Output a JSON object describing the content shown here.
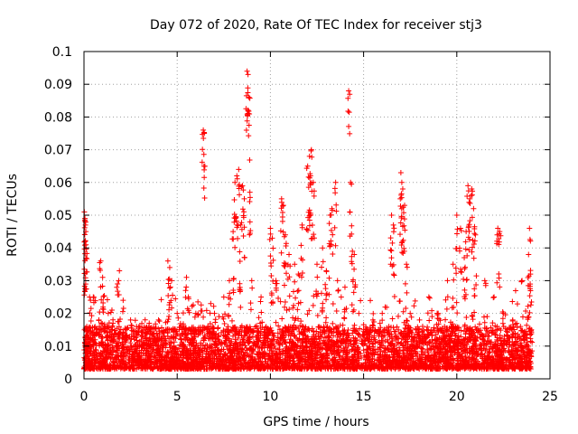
{
  "chart_data": {
    "type": "scatter",
    "title": "Day 072 of 2020, Rate Of TEC Index for receiver stj3",
    "xlabel": "GPS time / hours",
    "ylabel": "ROTI / TECUs",
    "xlim": [
      0,
      25
    ],
    "ylim": [
      0,
      0.1
    ],
    "x_ticks": [
      0,
      5,
      10,
      15,
      20,
      25
    ],
    "x_tick_labels": [
      "0",
      "5",
      "10",
      "15",
      "20",
      "25"
    ],
    "y_ticks": [
      0,
      0.01,
      0.02,
      0.03,
      0.04,
      0.05,
      0.06,
      0.07,
      0.08,
      0.09,
      0.1
    ],
    "y_tick_labels": [
      "0",
      "0.01",
      "0.02",
      "0.03",
      "0.04",
      "0.05",
      "0.06",
      "0.07",
      "0.08",
      "0.09",
      "0.1"
    ],
    "grid": true,
    "marker": "+",
    "color": "#ff0000",
    "series": [
      {
        "name": "ROTI",
        "color": "#ff0000",
        "points": [
          [
            0.02,
            0.051
          ],
          [
            0.05,
            0.049
          ],
          [
            0.08,
            0.047
          ],
          [
            0.1,
            0.045
          ],
          [
            0.06,
            0.042
          ],
          [
            0.15,
            0.016
          ],
          [
            0.3,
            0.025
          ],
          [
            0.35,
            0.024
          ],
          [
            0.5,
            0.025
          ],
          [
            0.8,
            0.018
          ],
          [
            0.9,
            0.036
          ],
          [
            1.0,
            0.031
          ],
          [
            1.3,
            0.02
          ],
          [
            1.5,
            0.021
          ],
          [
            1.8,
            0.029
          ],
          [
            1.9,
            0.033
          ],
          [
            2.1,
            0.024
          ],
          [
            2.5,
            0.018
          ],
          [
            3.0,
            0.016
          ],
          [
            3.5,
            0.017
          ],
          [
            4.0,
            0.018
          ],
          [
            4.5,
            0.036
          ],
          [
            4.6,
            0.034
          ],
          [
            4.7,
            0.03
          ],
          [
            5.0,
            0.02
          ],
          [
            5.5,
            0.031
          ],
          [
            5.6,
            0.025
          ],
          [
            6.0,
            0.02
          ],
          [
            6.4,
            0.076
          ],
          [
            6.45,
            0.075
          ],
          [
            6.8,
            0.023
          ],
          [
            7.0,
            0.02
          ],
          [
            7.5,
            0.025
          ],
          [
            7.8,
            0.03
          ],
          [
            8.0,
            0.045
          ],
          [
            8.1,
            0.06
          ],
          [
            8.2,
            0.062
          ],
          [
            8.3,
            0.064
          ],
          [
            8.4,
            0.047
          ],
          [
            8.5,
            0.059
          ],
          [
            8.6,
            0.055
          ],
          [
            8.75,
            0.094
          ],
          [
            8.8,
            0.093
          ],
          [
            8.85,
            0.086
          ],
          [
            8.9,
            0.057
          ],
          [
            9.0,
            0.03
          ],
          [
            9.5,
            0.025
          ],
          [
            10.0,
            0.046
          ],
          [
            10.1,
            0.043
          ],
          [
            10.3,
            0.03
          ],
          [
            10.6,
            0.055
          ],
          [
            10.7,
            0.053
          ],
          [
            10.8,
            0.044
          ],
          [
            11.0,
            0.038
          ],
          [
            11.3,
            0.035
          ],
          [
            11.5,
            0.032
          ],
          [
            11.7,
            0.047
          ],
          [
            12.0,
            0.065
          ],
          [
            12.1,
            0.068
          ],
          [
            12.2,
            0.07
          ],
          [
            12.15,
            0.062
          ],
          [
            12.3,
            0.06
          ],
          [
            12.5,
            0.035
          ],
          [
            12.8,
            0.04
          ],
          [
            13.0,
            0.033
          ],
          [
            13.2,
            0.05
          ],
          [
            13.3,
            0.052
          ],
          [
            13.5,
            0.06
          ],
          [
            13.6,
            0.03
          ],
          [
            13.8,
            0.025
          ],
          [
            14.0,
            0.028
          ],
          [
            14.2,
            0.088
          ],
          [
            14.3,
            0.06
          ],
          [
            14.4,
            0.039
          ],
          [
            14.5,
            0.038
          ],
          [
            15.0,
            0.015
          ],
          [
            15.5,
            0.018
          ],
          [
            16.0,
            0.02
          ],
          [
            16.5,
            0.05
          ],
          [
            16.6,
            0.047
          ],
          [
            17.0,
            0.063
          ],
          [
            17.05,
            0.06
          ],
          [
            17.1,
            0.058
          ],
          [
            17.2,
            0.053
          ],
          [
            17.3,
            0.035
          ],
          [
            17.5,
            0.02
          ],
          [
            18.0,
            0.018
          ],
          [
            18.5,
            0.025
          ],
          [
            19.0,
            0.02
          ],
          [
            19.5,
            0.03
          ],
          [
            19.8,
            0.035
          ],
          [
            20.0,
            0.05
          ],
          [
            20.2,
            0.046
          ],
          [
            20.4,
            0.037
          ],
          [
            20.5,
            0.045
          ],
          [
            20.6,
            0.059
          ],
          [
            20.7,
            0.055
          ],
          [
            20.8,
            0.058
          ],
          [
            20.9,
            0.052
          ],
          [
            21.0,
            0.044
          ],
          [
            21.5,
            0.03
          ],
          [
            22.0,
            0.025
          ],
          [
            22.2,
            0.046
          ],
          [
            22.3,
            0.045
          ],
          [
            22.5,
            0.02
          ],
          [
            23.0,
            0.018
          ],
          [
            23.5,
            0.03
          ],
          [
            23.9,
            0.046
          ],
          [
            23.85,
            0.038
          ],
          [
            23.95,
            0.032
          ],
          [
            24.0,
            0.015
          ]
        ],
        "dense_band": {
          "description": "continuous band of low ROTI values across the whole day",
          "x_range": [
            0,
            24
          ],
          "y_floor": 0.003,
          "y_typical_max": 0.016,
          "points_per_hour": 200
        }
      }
    ]
  }
}
